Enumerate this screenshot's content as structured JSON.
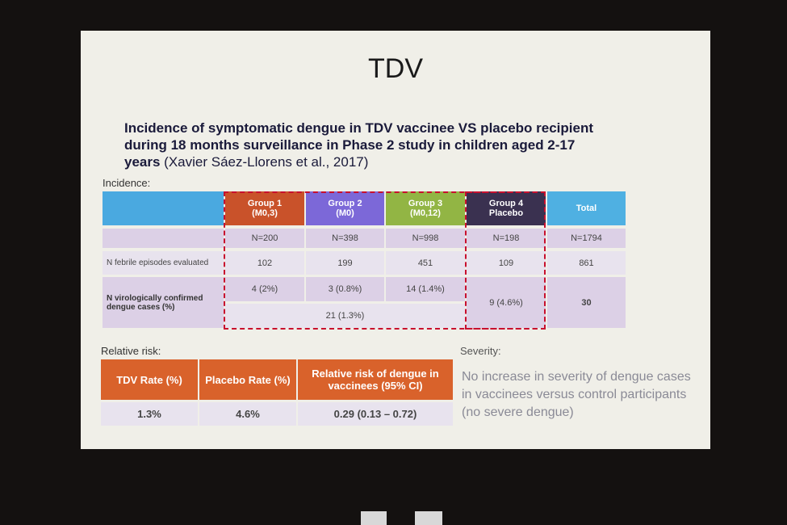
{
  "slide": {
    "title": "TDV",
    "heading": "Incidence of symptomatic dengue in TDV vaccinee VS placebo recipient during 18 months surveillance in Phase 2 study in children aged 2-17 years",
    "citation": "(Xavier Sáez-Llorens et al., 2017)",
    "incidence_label": "Incidence:",
    "incidence_table": {
      "headers": [
        {
          "line1": "Group 1",
          "line2": "(M0,3)"
        },
        {
          "line1": "Group 2",
          "line2": "(M0)"
        },
        {
          "line1": "Group 3",
          "line2": "(M0,12)"
        },
        {
          "line1": "Group 4",
          "line2": "Placebo"
        },
        {
          "line1": "Total"
        }
      ],
      "n_row": [
        "N=200",
        "N=398",
        "N=998",
        "N=198",
        "N=1794"
      ],
      "febrile_row": {
        "label": "N febrile episodes evaluated",
        "cells": [
          102,
          199,
          451,
          109,
          861
        ]
      },
      "confirmed_row": {
        "label": "N virologically confirmed dengue cases (%)",
        "groups": [
          "4 (2%)",
          "3 (0.8%)",
          "14 (1.4%)"
        ],
        "groups_combined": "21 (1.3%)",
        "placebo": "9 (4.6%)",
        "total": "30"
      }
    },
    "relative_risk_label": "Relative risk:",
    "relative_risk_table": {
      "headers": [
        "TDV Rate (%)",
        "Placebo Rate (%)",
        "Relative risk of dengue in vaccinees (95% CI)"
      ],
      "values": [
        "1.3%",
        "4.6%",
        "0.29 (0.13 – 0.72)"
      ]
    },
    "severity_label": "Severity:",
    "severity_text": "No increase in severity of dengue cases in vaccinees versus control participants (no severe dengue)"
  }
}
